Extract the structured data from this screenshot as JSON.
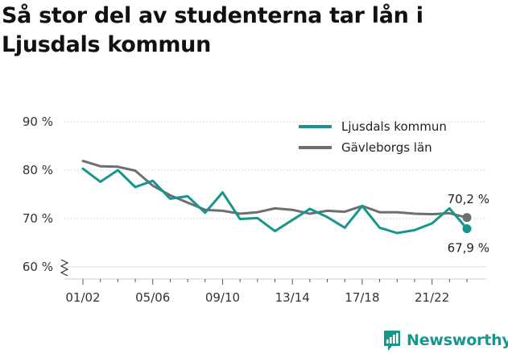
{
  "title": "Så stor del av studenterna tar lån i Ljusdals kommun",
  "brand": {
    "name": "Newsworthy",
    "color": "#17968c"
  },
  "chart_data": {
    "type": "line",
    "x": [
      "01/02",
      "02/03",
      "03/04",
      "04/05",
      "05/06",
      "06/07",
      "07/08",
      "08/09",
      "09/10",
      "10/11",
      "11/12",
      "12/13",
      "13/14",
      "14/15",
      "15/16",
      "16/17",
      "17/18",
      "18/19",
      "19/20",
      "20/21",
      "21/22",
      "22/23",
      "23/24"
    ],
    "x_tick_labels": [
      "01/02",
      "05/06",
      "09/10",
      "13/14",
      "17/18",
      "21/22"
    ],
    "y_tick_labels": [
      "60 %",
      "70 %",
      "80 %",
      "90 %"
    ],
    "ylim": [
      60,
      90
    ],
    "y_axis_broken": true,
    "grid": true,
    "legend_position": "top-right",
    "series": [
      {
        "name": "Ljusdals kommun",
        "color": "#17968c",
        "values": [
          80.3,
          77.6,
          80.0,
          76.5,
          77.8,
          74.1,
          74.6,
          71.2,
          75.4,
          69.9,
          70.1,
          67.4,
          69.7,
          72.0,
          70.3,
          68.1,
          72.6,
          68.1,
          67.0,
          67.6,
          69.0,
          72.1,
          67.9
        ],
        "end_label": "67,9 %"
      },
      {
        "name": "Gävleborgs län",
        "color": "#6e6e75",
        "values": [
          81.9,
          80.8,
          80.7,
          79.9,
          76.8,
          74.8,
          73.3,
          71.8,
          71.6,
          71.0,
          71.3,
          72.1,
          71.8,
          71.0,
          71.6,
          71.4,
          72.6,
          71.3,
          71.3,
          71.0,
          70.9,
          71.1,
          70.2
        ],
        "end_label": "70,2 %"
      }
    ]
  }
}
